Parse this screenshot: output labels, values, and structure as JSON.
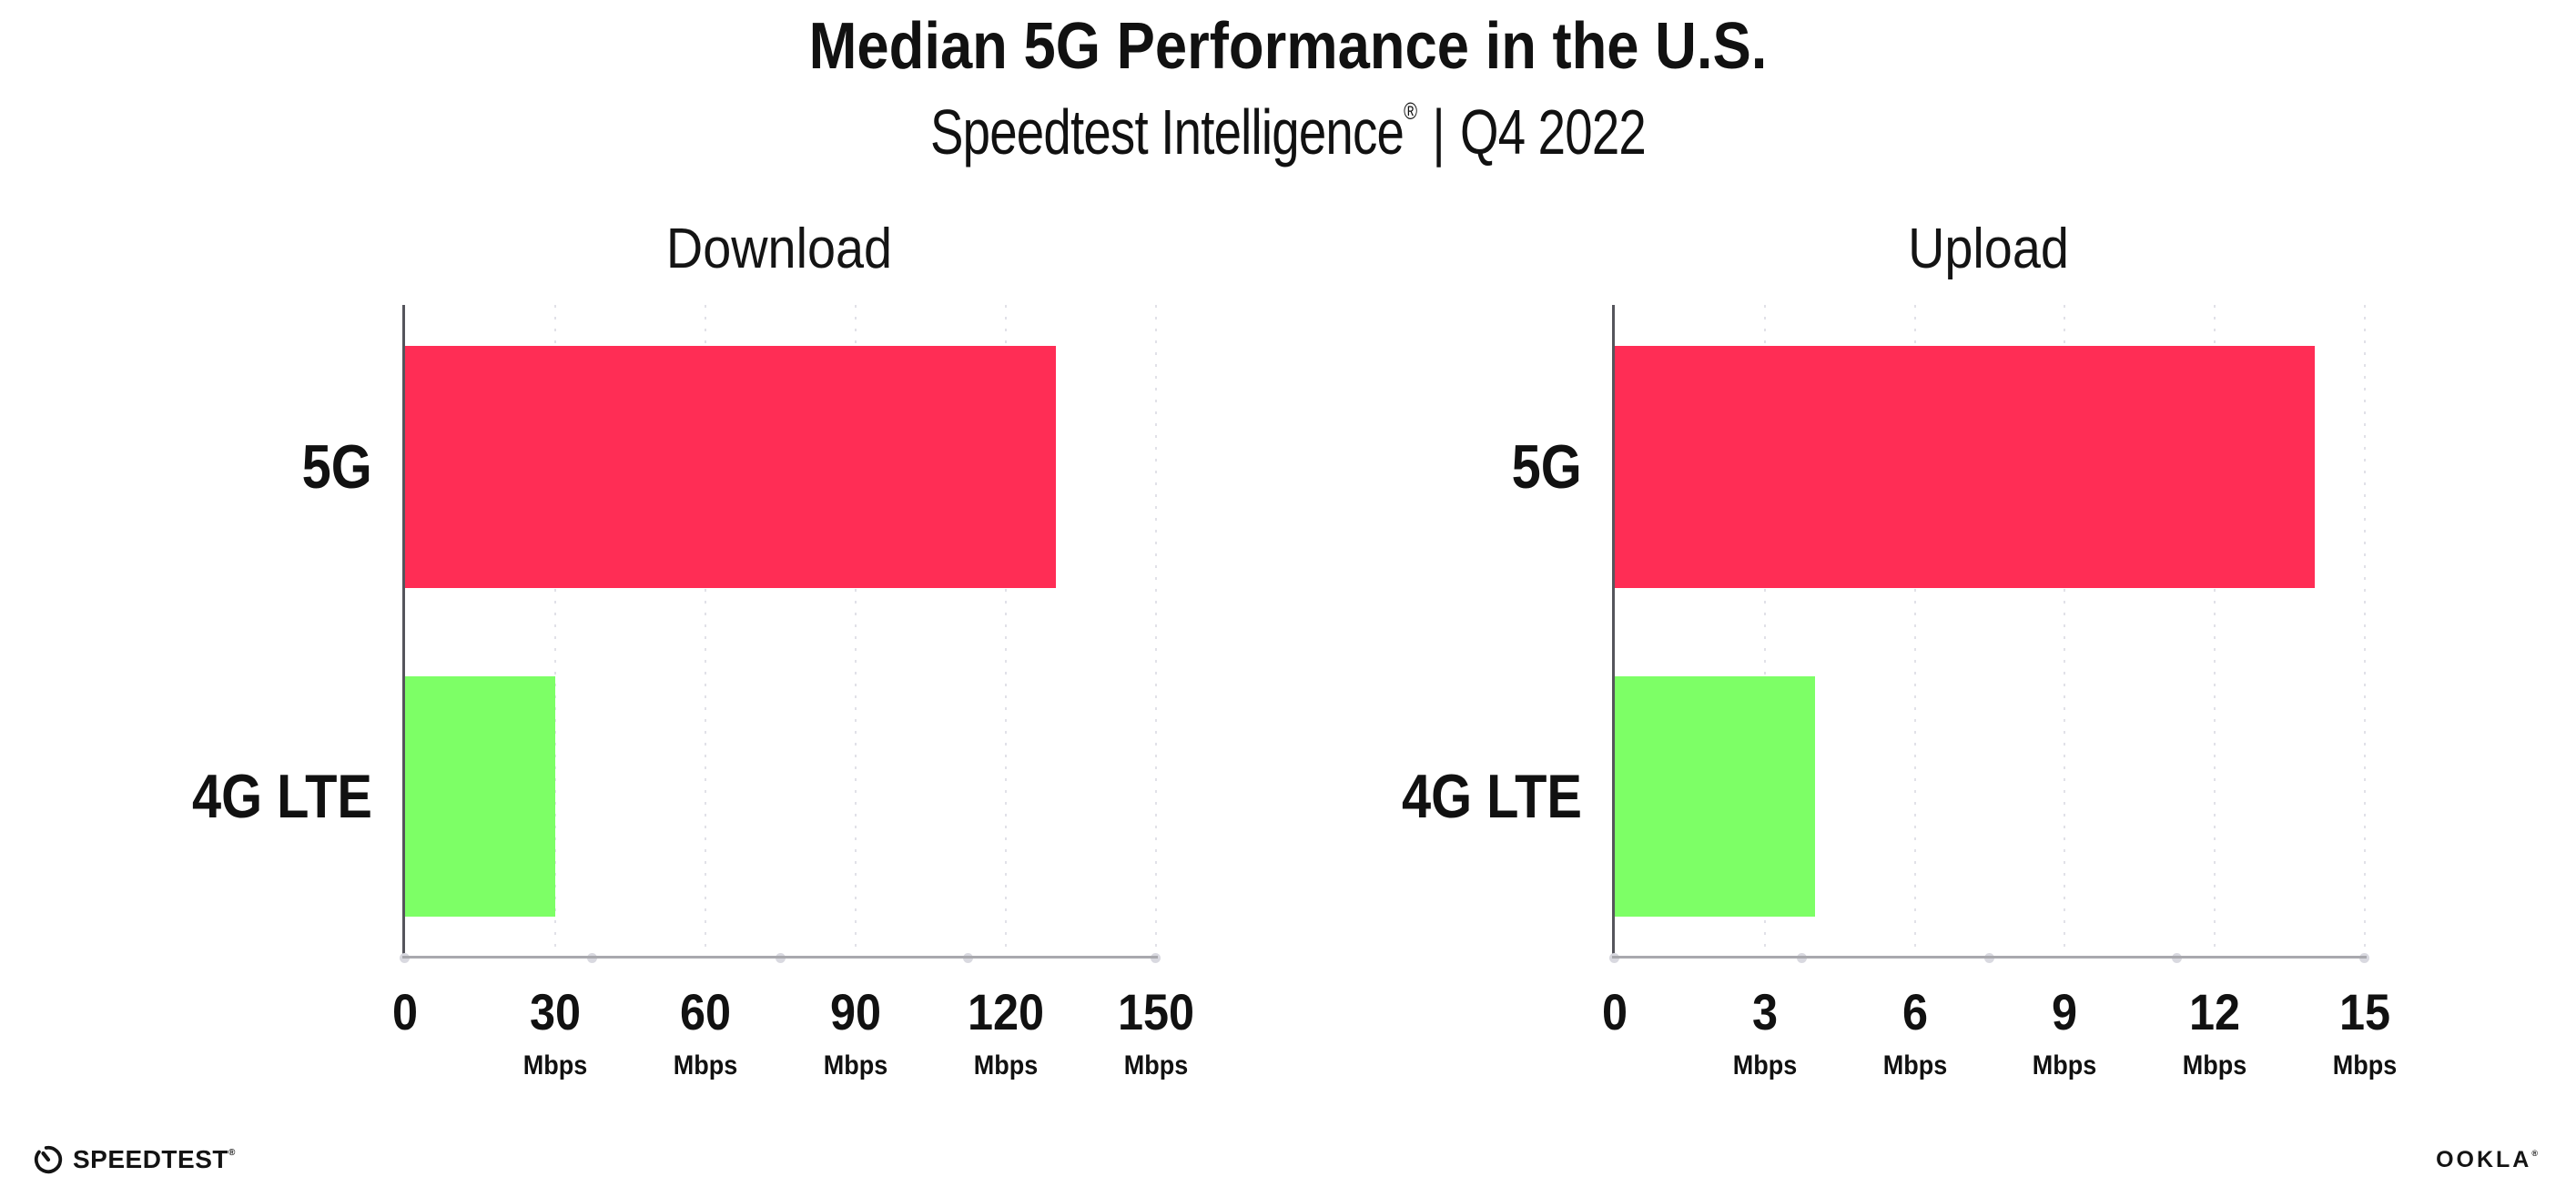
{
  "header": {
    "title": "Median 5G Performance in the U.S.",
    "subtitle": {
      "brand": "Speedtest Intelligence",
      "reg": "®",
      "divider": "|",
      "period": "Q4 2022"
    }
  },
  "footer": {
    "speedtest": {
      "text": "SPEEDTEST",
      "reg": "®",
      "icon": "speedtest-gauge-icon"
    },
    "ookla": {
      "text": "OOKLA",
      "reg": "®"
    }
  },
  "colors": {
    "bar_5g": "#ff2d55",
    "bar_4g_lte": "#7dff66",
    "x_axis_line": "#a9a9ae",
    "y_axis_line": "#55555c",
    "gridline": "#e1e1e8",
    "axis_dot": "#d9d9e0",
    "text": "#111111"
  },
  "chart_data": [
    {
      "type": "bar",
      "orientation": "horizontal",
      "title": "Download",
      "categories": [
        "5G",
        "4G LTE"
      ],
      "values": [
        130,
        30
      ],
      "unit": "Mbps",
      "xlabel": "",
      "ylabel": "",
      "xlim": [
        0,
        150
      ],
      "xticks": [
        0,
        30,
        60,
        90,
        120,
        150
      ],
      "bar_colors": [
        "#ff2d55",
        "#7dff66"
      ],
      "grid": "dotted-vertical-at-ticks",
      "legend": "none"
    },
    {
      "type": "bar",
      "orientation": "horizontal",
      "title": "Upload",
      "categories": [
        "5G",
        "4G LTE"
      ],
      "values": [
        14,
        4
      ],
      "unit": "Mbps",
      "xlabel": "",
      "ylabel": "",
      "xlim": [
        0,
        15
      ],
      "xticks": [
        0,
        3,
        6,
        9,
        12,
        15
      ],
      "bar_colors": [
        "#ff2d55",
        "#7dff66"
      ],
      "grid": "dotted-vertical-at-ticks",
      "legend": "none"
    }
  ]
}
